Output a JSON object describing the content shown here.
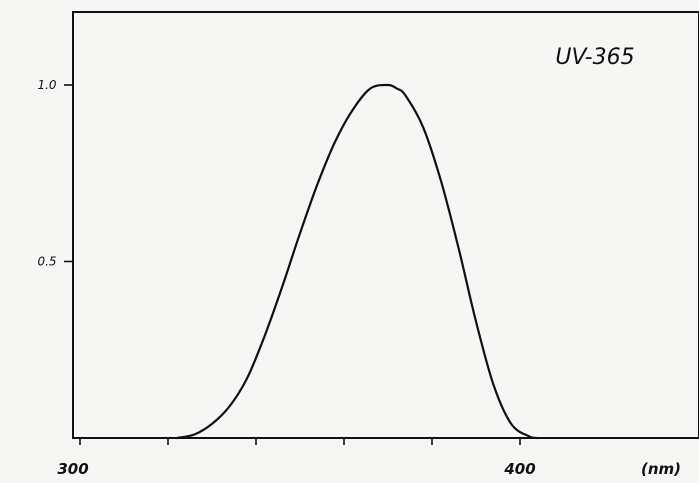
{
  "chart_data": {
    "type": "line",
    "title": "UV-365",
    "xlabel": "(nm)",
    "ylabel": "",
    "xlim": [
      300,
      410
    ],
    "ylim": [
      0,
      1.0
    ],
    "x_tick_labels": [
      {
        "value": 300,
        "label": "300"
      },
      {
        "value": 400,
        "label": "400"
      }
    ],
    "x_ticks_unlabeled": [
      320,
      340,
      360,
      380
    ],
    "y_ticks": [
      {
        "value": 1.0,
        "label": "1.0"
      },
      {
        "value": 0.5,
        "label": "0.5"
      }
    ],
    "series": [
      {
        "x": [
          322,
          326,
          330,
          334,
          338,
          342,
          346,
          350,
          354,
          358,
          362,
          366,
          370,
          372,
          374,
          378,
          382,
          386,
          390,
          394,
          398,
          402,
          404
        ],
        "y": [
          0.0,
          0.01,
          0.04,
          0.09,
          0.17,
          0.29,
          0.43,
          0.58,
          0.72,
          0.84,
          0.93,
          0.99,
          1.0,
          0.99,
          0.97,
          0.88,
          0.73,
          0.54,
          0.33,
          0.15,
          0.04,
          0.005,
          0.0
        ]
      }
    ],
    "grid": false,
    "legend": "none"
  }
}
